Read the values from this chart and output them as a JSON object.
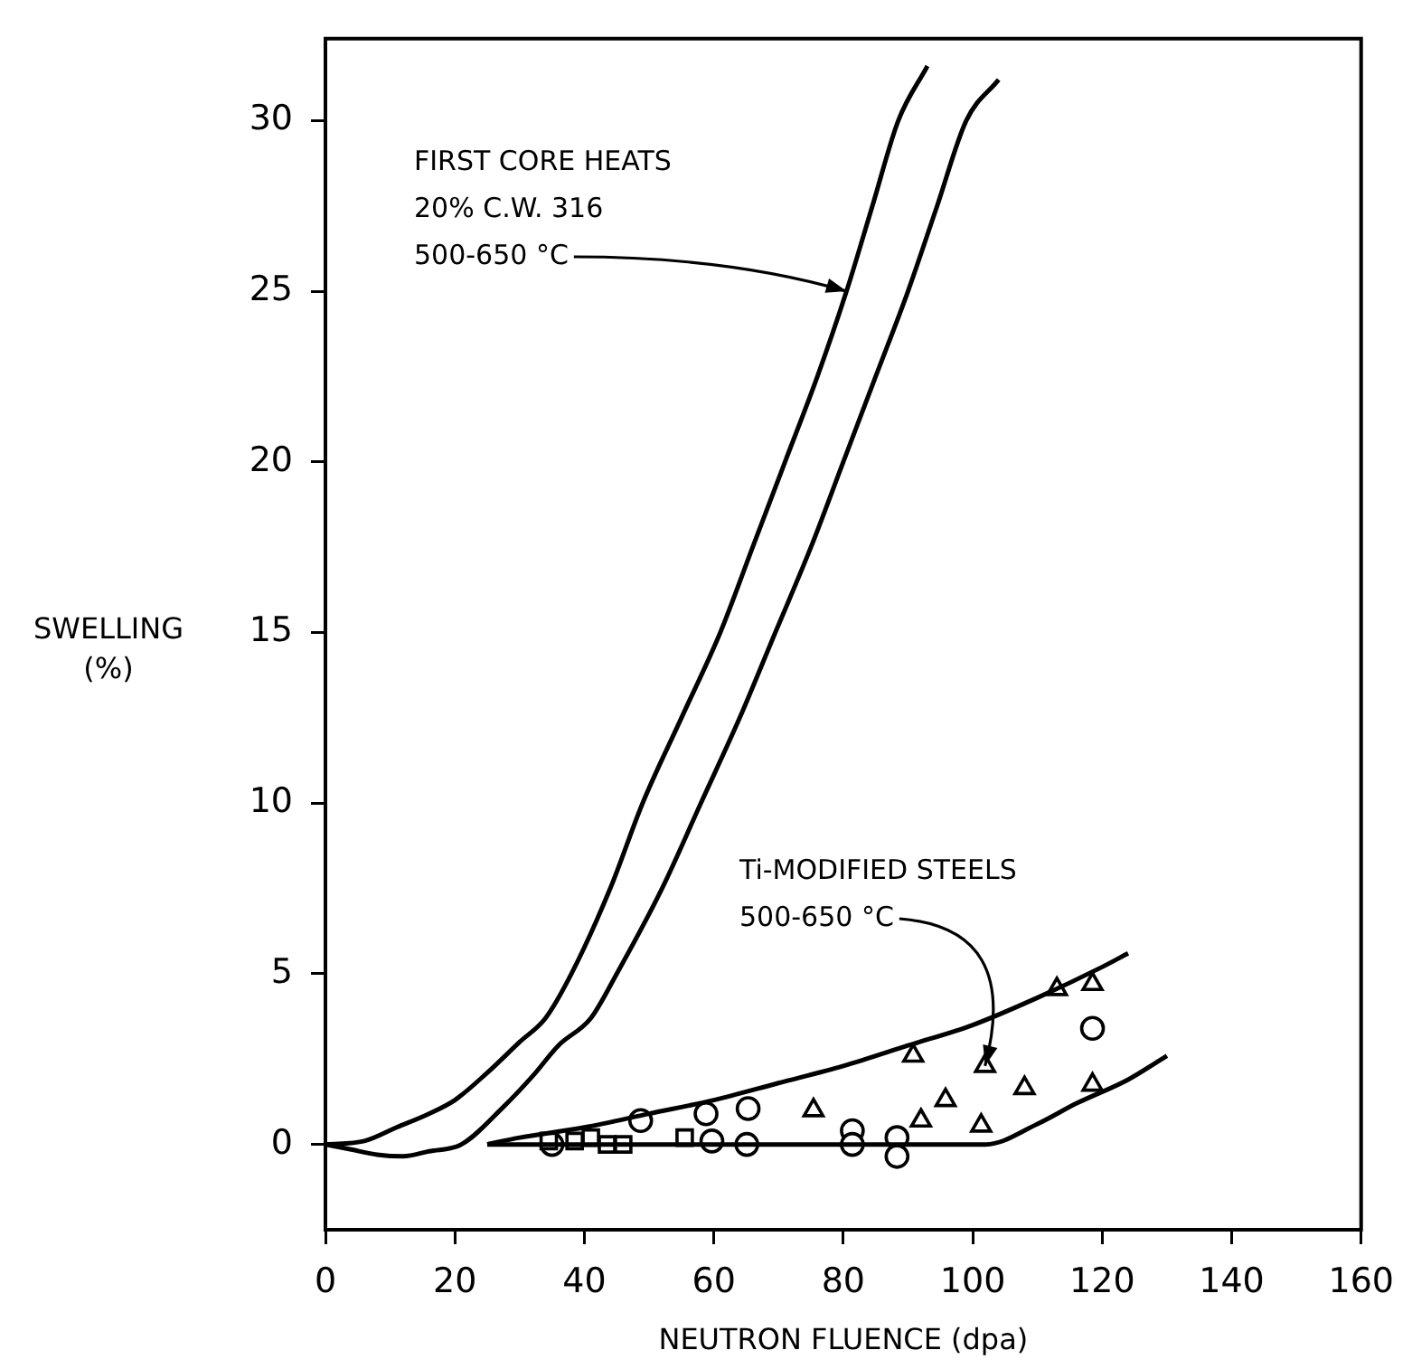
{
  "chart_data": {
    "type": "scatter",
    "xlabel": "NEUTRON FLUENCE (dpa)",
    "ylabel": "SWELLING\n(%)",
    "xlim": [
      0,
      160
    ],
    "xticks": [
      0,
      20,
      40,
      60,
      80,
      100,
      120,
      140,
      160
    ],
    "ylim": [
      -2.5,
      32.4
    ],
    "yticks": [
      0,
      5,
      10,
      15,
      20,
      25,
      30
    ],
    "grid": false,
    "legend": false,
    "series": [
      {
        "type": "line",
        "color": "#000000",
        "x": [
          0,
          6,
          11,
          16,
          20,
          25,
          30,
          34,
          38,
          44,
          49,
          55,
          61,
          66,
          71,
          76,
          80.5,
          84.5,
          88.5,
          93
        ],
        "values": [
          0,
          0.1,
          0.5,
          0.9,
          1.3,
          2.1,
          3,
          3.7,
          5,
          7.5,
          10,
          12.5,
          15,
          17.5,
          20,
          22.5,
          25,
          27.5,
          30,
          31.6
        ]
      },
      {
        "type": "line",
        "color": "#000000",
        "x": [
          0,
          4,
          8,
          12,
          16,
          21,
          27.5,
          32,
          36,
          41,
          45,
          52,
          58,
          64,
          69.5,
          75,
          80,
          85,
          90,
          94.5,
          99,
          104
        ],
        "values": [
          0,
          -0.15,
          -0.3,
          -0.35,
          -0.2,
          0,
          1.1,
          2,
          2.9,
          3.7,
          5,
          7.5,
          10,
          12.5,
          15,
          17.5,
          20,
          22.5,
          25,
          27.5,
          30,
          31.2
        ]
      },
      {
        "type": "line",
        "color": "#000000",
        "x": [
          25,
          30,
          40,
          50,
          60,
          70,
          80,
          90,
          100,
          110,
          120,
          124
        ],
        "values": [
          0,
          0.2,
          0.5,
          0.9,
          1.3,
          1.8,
          2.3,
          2.9,
          3.5,
          4.3,
          5.2,
          5.6
        ]
      },
      {
        "type": "line",
        "color": "#000000",
        "x": [
          25,
          60,
          102,
          110,
          116,
          124,
          130
        ],
        "values": [
          0,
          0,
          0,
          0.6,
          1.2,
          1.9,
          2.6
        ]
      },
      {
        "marker": "square",
        "color": "#000000",
        "x": [
          34.5,
          38.5,
          41,
          43.5,
          46,
          55.5
        ],
        "values": [
          0.1,
          0.1,
          0.2,
          0,
          0,
          0.2
        ]
      },
      {
        "marker": "circle",
        "color": "#000000",
        "x": [
          35,
          48.7,
          58.8,
          59.7,
          65.3,
          65.1,
          81.4,
          81.4,
          88.3,
          88.3,
          118.5
        ],
        "values": [
          0,
          0.7,
          0.9,
          0.1,
          1.05,
          0,
          0.4,
          0,
          0.2,
          -0.35,
          3.4
        ]
      },
      {
        "marker": "triangle",
        "color": "#000000",
        "x": [
          75.4,
          90.8,
          92,
          95.8,
          101.3,
          101.9,
          108,
          113,
          118.5,
          118.5
        ],
        "values": [
          1,
          2.6,
          0.7,
          1.3,
          0.55,
          2.3,
          1.65,
          4.55,
          4.7,
          1.75
        ]
      }
    ],
    "annotations": [
      {
        "text": "FIRST CORE HEATS\n20% C.W. 316\n500-650 °C",
        "x": 80.5,
        "y": 25
      },
      {
        "text": "Ti-MODIFIED STEELS\n500-650 °C",
        "x": 101.9,
        "y": 2.3
      }
    ]
  }
}
